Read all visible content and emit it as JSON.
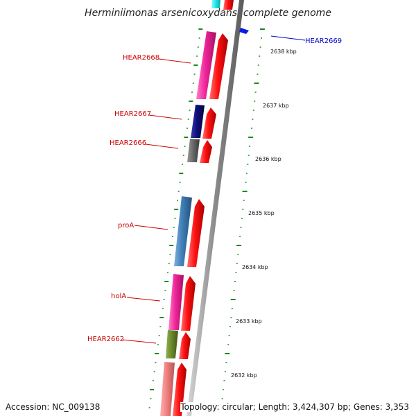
{
  "title": "Herminiimonas arsenicoxydans, complete genome",
  "accession": "Accession: NC_009138",
  "topology": "Topology: circular; Length: 3,424,307 bp; Genes: 3,353",
  "colors": {
    "pink": "#f0259a",
    "navy": "#0d0d7a",
    "gray": "#6a6a6a",
    "steelblue": "#3f7fb7",
    "olive": "#6b8a2e",
    "salmon": "#f08080",
    "cyan": "#22e6ee",
    "red": "#ff1010",
    "blue": "#0a1de0",
    "tick": "#1a8a1a",
    "label_red": "#cc0000",
    "label_blue": "#0000cc"
  },
  "genes": [
    {
      "id": "HEAR2669",
      "label": "HEAR2669",
      "color": "blue",
      "strand": "-"
    },
    {
      "id": "HEAR2668",
      "label": "HEAR2668",
      "color": "pink",
      "strand": "+"
    },
    {
      "id": "HEAR2667",
      "label": "HEAR2667",
      "color": "navy",
      "strand": "+"
    },
    {
      "id": "HEAR2666",
      "label": "HEAR2666",
      "color": "gray",
      "strand": "+"
    },
    {
      "id": "proA",
      "label": "proA",
      "color": "steelblue",
      "strand": "+"
    },
    {
      "id": "holA",
      "label": "holA",
      "color": "pink",
      "strand": "+"
    },
    {
      "id": "HEAR2662",
      "label": "HEAR2662",
      "color": "olive",
      "strand": "+"
    },
    {
      "id": "unlabeled-bottom",
      "label": "",
      "color": "salmon",
      "strand": "+"
    },
    {
      "id": "unlabeled-top",
      "label": "",
      "color": "cyan",
      "strand": "+"
    }
  ],
  "scale_labels": [
    "2638 kbp",
    "2637 kbp",
    "2636 kbp",
    "2635 kbp",
    "2634 kbp",
    "2633 kbp",
    "2632 kbp"
  ]
}
